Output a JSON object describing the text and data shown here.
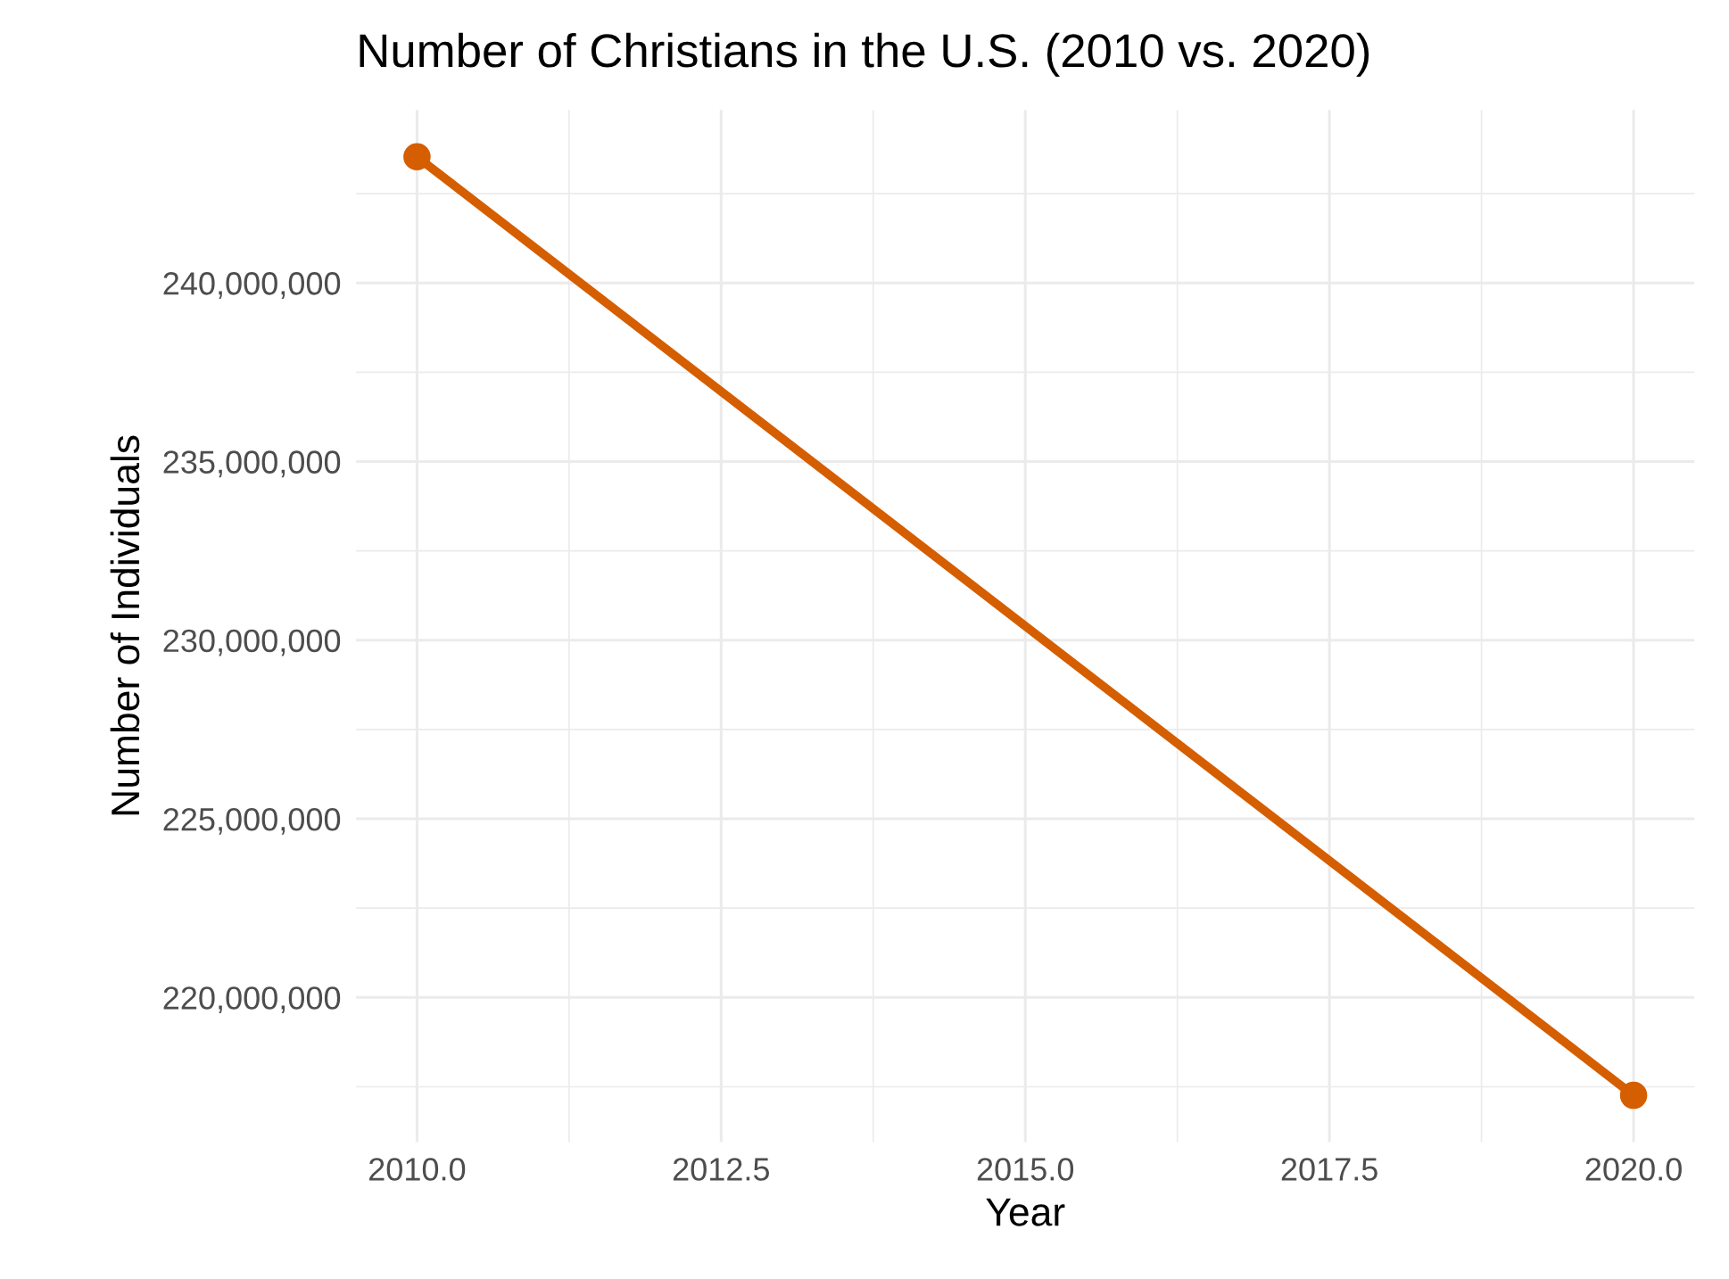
{
  "chart_data": {
    "type": "line",
    "title": "Number of Christians in the U.S. (2010 vs. 2020)",
    "xlabel": "Year",
    "ylabel": "Number of Individuals",
    "x": [
      2010,
      2020
    ],
    "series": [
      {
        "color": "#d55e00",
        "values": [
          243530000,
          217260000
        ]
      }
    ],
    "xlim": [
      2009.5,
      2020.5
    ],
    "xticks": [
      {
        "value": 2010,
        "label": "2010.0"
      },
      {
        "value": 2012.5,
        "label": "2012.5"
      },
      {
        "value": 2015,
        "label": "2015.0"
      },
      {
        "value": 2017.5,
        "label": "2017.5"
      },
      {
        "value": 2020,
        "label": "2020.0"
      }
    ],
    "ylim": [
      215950000,
      244840000
    ],
    "yticks": [
      {
        "value": 220000000,
        "label": "220,000,000"
      },
      {
        "value": 225000000,
        "label": "225,000,000"
      },
      {
        "value": 230000000,
        "label": "230,000,000"
      },
      {
        "value": 235000000,
        "label": "235,000,000"
      },
      {
        "value": 240000000,
        "label": "240,000,000"
      }
    ],
    "grid": true,
    "marker": "circle",
    "line_style": "solid"
  }
}
